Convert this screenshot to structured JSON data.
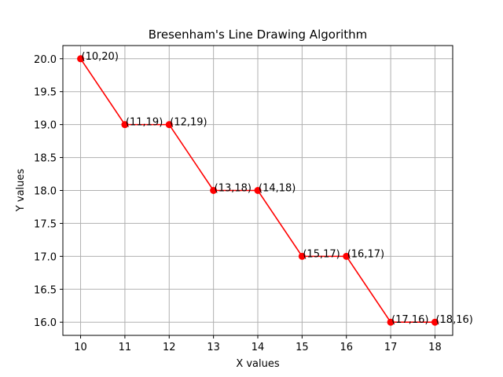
{
  "chart_data": {
    "type": "line",
    "title": "Bresenham's Line Drawing Algorithm",
    "xlabel": "X values",
    "ylabel": "Y values",
    "xlim": [
      9.6,
      18.4
    ],
    "ylim": [
      15.8,
      20.2
    ],
    "xticks": [
      10,
      11,
      12,
      13,
      14,
      15,
      16,
      17,
      18
    ],
    "yticks": [
      16.0,
      16.5,
      17.0,
      17.5,
      18.0,
      18.5,
      19.0,
      19.5,
      20.0
    ],
    "ytick_labels": [
      "16.0",
      "16.5",
      "17.0",
      "17.5",
      "18.0",
      "18.5",
      "19.0",
      "19.5",
      "20.0"
    ],
    "grid": true,
    "series": [
      {
        "color": "#ff0000",
        "marker": "circle",
        "x": [
          10,
          11,
          12,
          13,
          14,
          15,
          16,
          17,
          18
        ],
        "y": [
          20,
          19,
          19,
          18,
          18,
          17,
          17,
          16,
          16
        ]
      }
    ],
    "annotations": [
      "(10,20)",
      "(11,19)",
      "(12,19)",
      "(13,18)",
      "(14,18)",
      "(15,17)",
      "(16,17)",
      "(17,16)",
      "(18,16)"
    ]
  }
}
